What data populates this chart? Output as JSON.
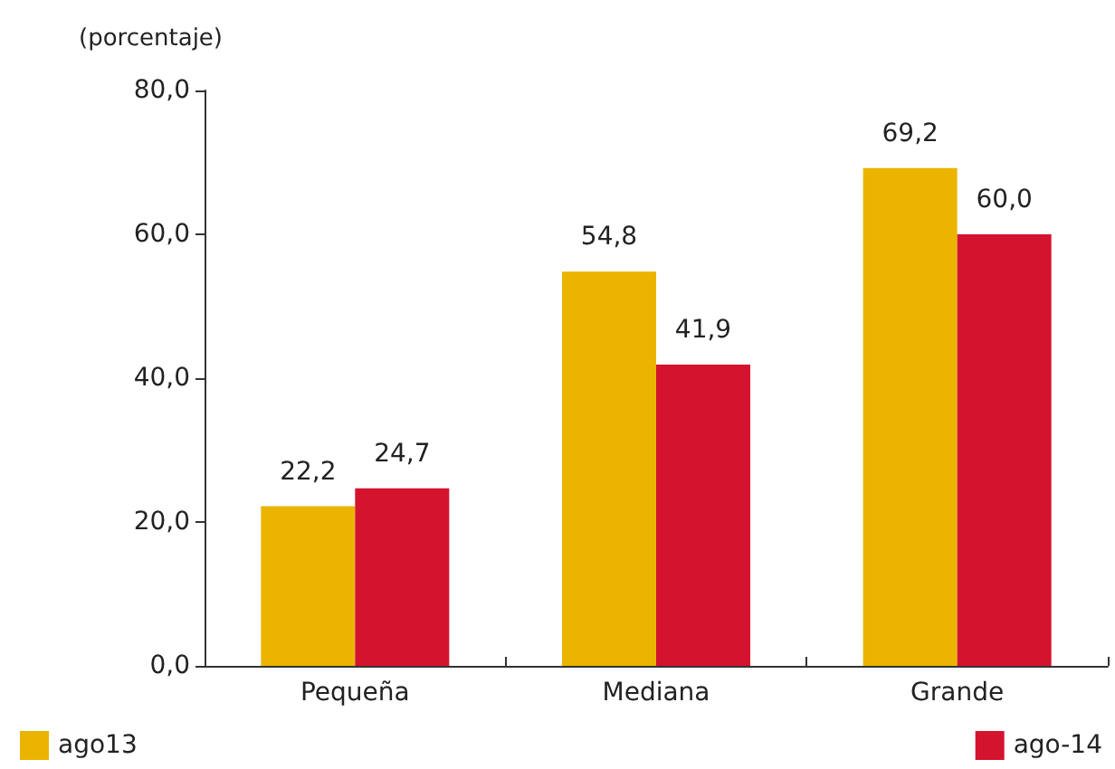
{
  "chart_data": {
    "type": "bar",
    "ylabel": "(porcentaje)",
    "categories": [
      "Pequeña",
      "Mediana",
      "Grande"
    ],
    "series": [
      {
        "name": "ago13",
        "color": "#ebb400",
        "values": [
          22.2,
          54.8,
          69.2
        ],
        "value_labels": [
          "22,2",
          "54,8",
          "69,2"
        ]
      },
      {
        "name": "ago-14",
        "color": "#d4132e",
        "values": [
          24.7,
          41.9,
          60.0
        ],
        "value_labels": [
          "24,7",
          "41,9",
          "60,0"
        ]
      }
    ],
    "ylim": [
      0,
      80
    ],
    "yticks": [
      {
        "value": 0,
        "label": "0,0"
      },
      {
        "value": 20,
        "label": "20,0"
      },
      {
        "value": 40,
        "label": "40,0"
      },
      {
        "value": 60,
        "label": "60,0"
      },
      {
        "value": 80,
        "label": "80,0"
      }
    ],
    "grid": false,
    "legend": "bottom"
  }
}
